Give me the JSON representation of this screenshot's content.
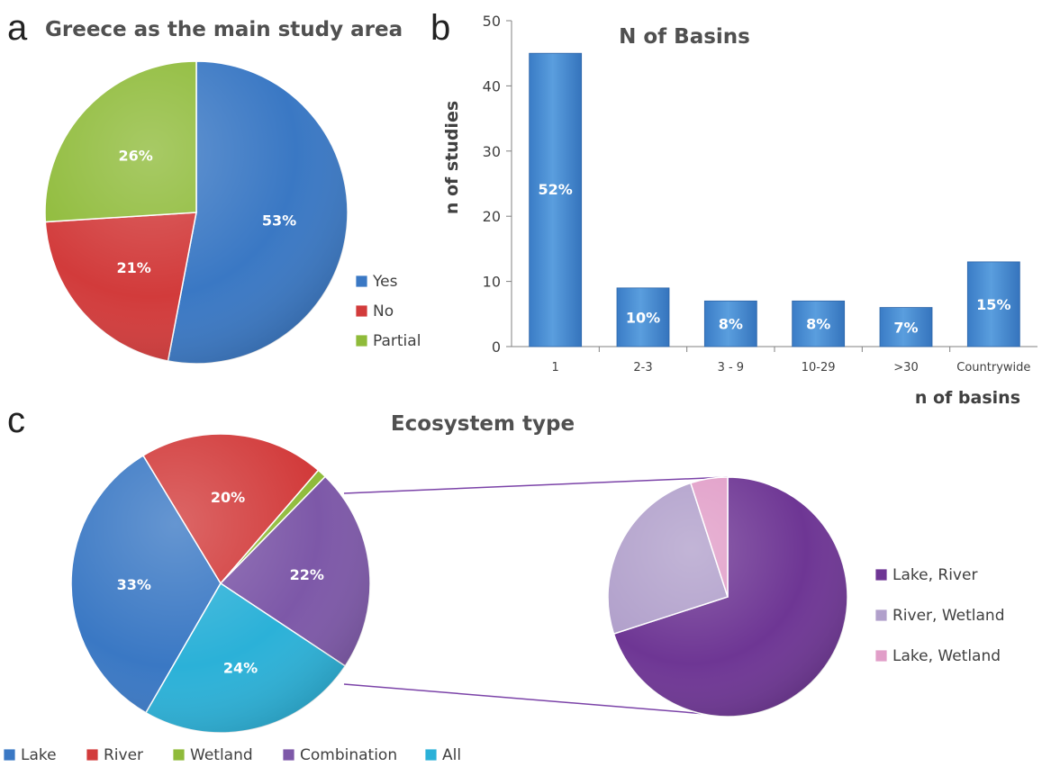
{
  "colors": {
    "yes": "#3a78c4",
    "no": "#d23b3b",
    "partial": "#8fbb3a",
    "lake": "#3a78c4",
    "river": "#d23b3b",
    "wetland": "#8fbb3a",
    "combination": "#7d58a8",
    "all": "#2bb1d8",
    "lake_river": "#6e3694",
    "river_wetland": "#b1a0cb",
    "lake_wetland": "#e19ec8",
    "bar": "#4a8fd4",
    "connector": "#7b43a8",
    "small_label": "#2ea84a"
  },
  "chart_data": [
    {
      "panel": "a",
      "type": "pie",
      "title": "Greece as the main study area",
      "slices": [
        {
          "name": "Yes",
          "value": 53,
          "label": "53%"
        },
        {
          "name": "No",
          "value": 21,
          "label": "21%"
        },
        {
          "name": "Partial",
          "value": 26,
          "label": "26%"
        }
      ],
      "legend": [
        "Yes",
        "No",
        "Partial"
      ],
      "legend_position": "right"
    },
    {
      "panel": "b",
      "type": "bar",
      "title": "N of Basins",
      "categories": [
        "1",
        "2-3",
        "3 - 9",
        "10-29",
        ">30",
        "Countrywide"
      ],
      "values": [
        45,
        9,
        7,
        7,
        6,
        13
      ],
      "data_labels": [
        "52%",
        "10%",
        "8%",
        "8%",
        "7%",
        "15%"
      ],
      "xlabel": "n of basins",
      "ylabel": "n of studies",
      "ylim": [
        0,
        50
      ],
      "yticks": [
        "0",
        "10",
        "20",
        "30",
        "40",
        "50"
      ],
      "grid": false
    },
    {
      "panel": "c",
      "type": "pie",
      "title": "Ecosystem type",
      "slices": [
        {
          "name": "Lake",
          "value": 33,
          "label": "33%"
        },
        {
          "name": "River",
          "value": 20,
          "label": "20%"
        },
        {
          "name": "Wetland",
          "value": 1,
          "label": "1%"
        },
        {
          "name": "Combination",
          "value": 22,
          "label": "22%"
        },
        {
          "name": "All",
          "value": 24,
          "label": "24%"
        }
      ],
      "legend": [
        "Lake",
        "River",
        "Wetland",
        "Combination",
        "All"
      ],
      "legend_position": "bottom",
      "breakdown": {
        "of": "Combination",
        "slices": [
          {
            "name": "Lake, River",
            "value": 70
          },
          {
            "name": "River, Wetland",
            "value": 25
          },
          {
            "name": "Lake, Wetland",
            "value": 5
          }
        ],
        "legend": [
          "Lake, River",
          "River, Wetland",
          "Lake, Wetland"
        ],
        "legend_position": "right"
      }
    }
  ],
  "panels": {
    "a": "a",
    "b": "b",
    "c": "c"
  }
}
